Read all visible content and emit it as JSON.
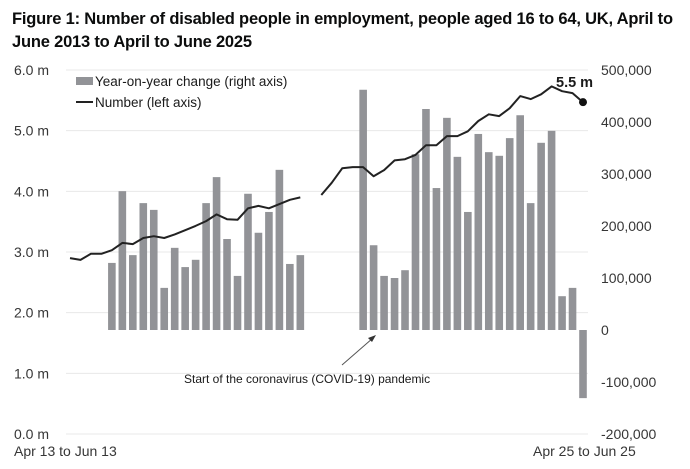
{
  "chart_data": {
    "type": "bar+line",
    "title": "Figure 1: Number of disabled people in employment, people aged 16 to 64, UK, April to June 2013 to April to June 2025",
    "frequency": "quarterly (rolling three-month periods)",
    "x_first_label": "Apr 13 to Jun 13",
    "x_last_label": "Apr 25 to Jun 25",
    "left_axis": {
      "label": "Number (millions)",
      "ylim": [
        0,
        6
      ],
      "ticks": [
        "0.0 m",
        "1.0 m",
        "2.0 m",
        "3.0 m",
        "4.0 m",
        "5.0 m",
        "6.0 m"
      ]
    },
    "right_axis": {
      "label": "Year-on-year change",
      "ylim": [
        -200000,
        500000
      ],
      "ticks": [
        "-200,000",
        "-100,000",
        "0",
        "100,000",
        "200,000",
        "300,000",
        "400,000",
        "500,000"
      ]
    },
    "grid": true,
    "legend": {
      "placement": "top-left",
      "entries": [
        {
          "name": "Year-on-year change (right axis)",
          "kind": "bar",
          "color": "#929397"
        },
        {
          "name": "Number (left axis)",
          "kind": "line",
          "color": "#222222"
        }
      ]
    },
    "series": [
      {
        "name": "Number (left axis)",
        "axis": "left",
        "unit": "millions",
        "values": [
          2.9,
          2.87,
          2.97,
          2.97,
          3.03,
          3.15,
          3.13,
          3.23,
          3.26,
          3.23,
          3.29,
          3.36,
          3.43,
          3.51,
          3.62,
          3.54,
          3.53,
          3.72,
          3.76,
          3.72,
          3.79,
          3.86,
          3.9,
          null,
          3.94,
          4.14,
          4.38,
          4.4,
          4.4,
          4.25,
          4.35,
          4.51,
          4.53,
          4.6,
          4.76,
          4.76,
          4.91,
          4.91,
          4.99,
          5.16,
          5.27,
          5.24,
          5.37,
          5.57,
          5.52,
          5.6,
          5.73,
          5.65,
          5.62,
          5.47
        ]
      },
      {
        "name": "Year-on-year change (right axis)",
        "axis": "right",
        "values": [
          null,
          null,
          null,
          null,
          129000,
          267000,
          144000,
          244000,
          231000,
          81000,
          158000,
          121000,
          135000,
          244000,
          294000,
          175000,
          104000,
          262000,
          187000,
          227000,
          308000,
          127000,
          144000,
          null,
          null,
          null,
          null,
          null,
          462000,
          163000,
          104000,
          100000,
          115000,
          338000,
          425000,
          273000,
          408000,
          333000,
          227000,
          377000,
          342000,
          335000,
          369000,
          413000,
          244000,
          360000,
          383000,
          65000,
          81000,
          -131000
        ]
      }
    ],
    "annotations": [
      {
        "text": "Start of the coronavirus (COVID-19) pandemic",
        "points_to_period_index": 28
      },
      {
        "text": "5.5 m",
        "points_to_period_index": 49,
        "kind": "end-value-label"
      }
    ],
    "colors": {
      "bar": "#929397",
      "line": "#222222",
      "grid": "#e8e8e8"
    }
  }
}
